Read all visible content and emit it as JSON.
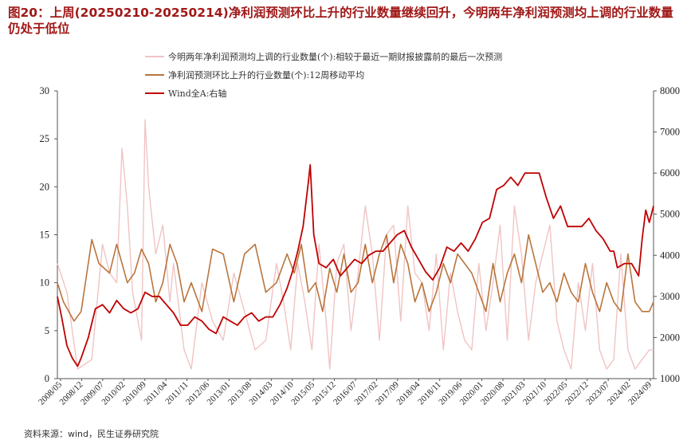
{
  "header": {
    "title": "图20：上周(20250210-20250214)净利润预测环比上升的行业数量继续回升，今明两年净利润预测均上调的行业数量仍处于低位"
  },
  "footer": {
    "source": "资料来源：wind，民生证券研究院"
  },
  "chart_data": {
    "type": "line",
    "title": "图20：上周(20250210-20250214)净利润预测环比上升的行业数量继续回升，今明两年净利润预测均上调的行业数量仍处于低位",
    "xlabel": "",
    "ylabel": "",
    "y2label": "",
    "x_ticks": [
      "2008/05",
      "2008/12",
      "2009/07",
      "2010/02",
      "2010/09",
      "2011/04",
      "2011/11",
      "2012/06",
      "2013/01",
      "2013/08",
      "2014/03",
      "2014/10",
      "2015/05",
      "2015/12",
      "2016/07",
      "2017/02",
      "2017/09",
      "2018/04",
      "2018/11",
      "2019/06",
      "2020/01",
      "2020/08",
      "2021/03",
      "2021/10",
      "2022/05",
      "2022/12",
      "2023/07",
      "2024/02",
      "2024/09"
    ],
    "xlim": [
      2008.33,
      2025.12
    ],
    "ylim": [
      0,
      30
    ],
    "y_ticks": [
      0,
      5,
      10,
      15,
      20,
      25,
      30
    ],
    "y2lim": [
      1000,
      8000
    ],
    "y2_ticks": [
      1000,
      2000,
      3000,
      4000,
      5000,
      6000,
      7000,
      8000
    ],
    "grid": false,
    "legend_position": "top-left",
    "series": [
      {
        "name": "今明两年净利润预测均上调的行业数量(个):相较于最近一期财报披露前的最后一次预测",
        "axis": "left",
        "color": "#f0c4c4",
        "x": [
          2008.33,
          2008.6,
          2008.9,
          2009.3,
          2009.6,
          2009.8,
          2010.0,
          2010.15,
          2010.3,
          2010.45,
          2010.7,
          2010.8,
          2010.9,
          2011.1,
          2011.3,
          2011.5,
          2011.6,
          2011.9,
          2012.1,
          2012.4,
          2012.7,
          2013.0,
          2013.3,
          2013.6,
          2013.9,
          2014.2,
          2014.5,
          2014.7,
          2014.9,
          2015.1,
          2015.3,
          2015.5,
          2015.7,
          2015.9,
          2016.0,
          2016.2,
          2016.4,
          2016.6,
          2016.8,
          2017.0,
          2017.2,
          2017.4,
          2017.6,
          2017.8,
          2018.0,
          2018.2,
          2018.4,
          2018.6,
          2018.8,
          2019.0,
          2019.2,
          2019.4,
          2019.6,
          2019.8,
          2020.0,
          2020.2,
          2020.4,
          2020.6,
          2020.8,
          2021.0,
          2021.2,
          2021.4,
          2021.6,
          2021.8,
          2022.0,
          2022.2,
          2022.4,
          2022.6,
          2022.8,
          2023.0,
          2023.2,
          2023.4,
          2023.6,
          2023.8,
          2024.0,
          2024.2,
          2024.4,
          2024.6,
          2024.8,
          2025.0,
          2025.12
        ],
        "values": [
          12,
          9,
          1,
          2,
          14,
          11,
          10,
          24,
          18,
          9,
          4,
          27,
          20,
          13,
          16,
          8,
          12,
          3,
          1,
          10,
          6,
          4,
          11,
          7,
          3,
          4,
          12,
          8,
          3,
          12,
          8,
          3,
          14,
          6,
          1,
          12,
          14,
          5,
          11,
          18,
          13,
          4,
          15,
          16,
          6,
          18,
          11,
          10,
          5,
          13,
          3,
          11,
          7,
          4,
          3,
          12,
          5,
          10,
          16,
          4,
          18,
          13,
          4,
          10,
          13,
          16,
          6,
          3,
          1,
          10,
          5,
          12,
          3,
          1,
          2,
          13,
          3,
          1,
          2,
          3,
          3
        ]
      },
      {
        "name": "净利润预测环比上升的行业数量(个):12周移动平均",
        "axis": "left",
        "color": "#b9753c",
        "x": [
          2008.33,
          2008.5,
          2008.8,
          2009.0,
          2009.3,
          2009.5,
          2009.8,
          2010.0,
          2010.3,
          2010.5,
          2010.7,
          2010.9,
          2011.1,
          2011.3,
          2011.5,
          2011.7,
          2011.9,
          2012.1,
          2012.4,
          2012.7,
          2013.0,
          2013.3,
          2013.6,
          2013.9,
          2014.2,
          2014.5,
          2014.8,
          2015.0,
          2015.2,
          2015.4,
          2015.6,
          2015.8,
          2016.0,
          2016.2,
          2016.4,
          2016.6,
          2016.8,
          2017.0,
          2017.2,
          2017.4,
          2017.6,
          2017.8,
          2018.0,
          2018.2,
          2018.4,
          2018.6,
          2018.8,
          2019.0,
          2019.2,
          2019.4,
          2019.6,
          2019.8,
          2020.0,
          2020.2,
          2020.4,
          2020.6,
          2020.8,
          2021.0,
          2021.2,
          2021.4,
          2021.6,
          2021.8,
          2022.0,
          2022.2,
          2022.4,
          2022.6,
          2022.8,
          2023.0,
          2023.2,
          2023.4,
          2023.6,
          2023.8,
          2024.0,
          2024.2,
          2024.4,
          2024.6,
          2024.8,
          2025.0,
          2025.12
        ],
        "values": [
          10,
          8,
          6,
          7,
          14.5,
          12,
          11,
          14,
          10,
          11,
          13.5,
          12,
          8,
          10,
          14,
          12,
          8,
          10,
          7,
          13.5,
          13,
          8,
          13,
          14,
          9,
          10,
          13,
          11,
          14,
          9,
          10,
          7,
          11.5,
          9,
          13,
          9,
          10,
          14,
          10,
          13,
          15,
          10,
          14,
          12,
          8,
          10,
          7,
          9,
          12,
          10,
          13,
          12,
          11,
          9,
          7,
          12,
          8,
          11,
          13,
          10,
          15,
          12,
          9,
          10,
          8,
          11,
          9,
          8,
          12,
          9,
          7,
          10,
          8,
          7,
          13,
          8,
          7,
          7,
          8
        ]
      },
      {
        "name": "Wind全A:右轴",
        "axis": "right",
        "color": "#c00000",
        "x": [
          2008.33,
          2008.45,
          2008.6,
          2008.75,
          2008.9,
          2009.0,
          2009.2,
          2009.4,
          2009.6,
          2009.8,
          2010.0,
          2010.2,
          2010.4,
          2010.6,
          2010.8,
          2011.0,
          2011.2,
          2011.4,
          2011.6,
          2011.8,
          2012.0,
          2012.2,
          2012.4,
          2012.6,
          2012.8,
          2013.0,
          2013.2,
          2013.4,
          2013.6,
          2013.8,
          2014.0,
          2014.2,
          2014.4,
          2014.6,
          2014.8,
          2014.95,
          2015.1,
          2015.25,
          2015.4,
          2015.45,
          2015.55,
          2015.7,
          2015.9,
          2016.1,
          2016.3,
          2016.5,
          2016.7,
          2016.9,
          2017.1,
          2017.3,
          2017.5,
          2017.7,
          2017.9,
          2018.1,
          2018.3,
          2018.5,
          2018.7,
          2018.9,
          2019.1,
          2019.3,
          2019.5,
          2019.7,
          2019.9,
          2020.1,
          2020.3,
          2020.5,
          2020.7,
          2020.9,
          2021.1,
          2021.3,
          2021.5,
          2021.7,
          2021.9,
          2022.1,
          2022.3,
          2022.5,
          2022.7,
          2022.9,
          2023.1,
          2023.3,
          2023.5,
          2023.7,
          2023.9,
          2024.0,
          2024.1,
          2024.3,
          2024.5,
          2024.7,
          2024.8,
          2024.9,
          2025.0,
          2025.12
        ],
        "values": [
          3000,
          2500,
          1800,
          1500,
          1300,
          1500,
          2000,
          2700,
          2800,
          2600,
          2900,
          2700,
          2600,
          2700,
          3100,
          3000,
          3000,
          2800,
          2600,
          2300,
          2300,
          2500,
          2400,
          2200,
          2100,
          2500,
          2400,
          2300,
          2500,
          2600,
          2400,
          2500,
          2500,
          2800,
          3200,
          3600,
          4100,
          4700,
          5800,
          6200,
          4500,
          3800,
          3700,
          3900,
          3500,
          3700,
          3900,
          3800,
          4000,
          4100,
          4100,
          4300,
          4500,
          4600,
          4200,
          3900,
          3600,
          3400,
          3700,
          4200,
          4100,
          4300,
          4100,
          4400,
          4800,
          4900,
          5600,
          5700,
          5900,
          5700,
          6000,
          6000,
          6000,
          5400,
          4900,
          5200,
          4700,
          4700,
          4700,
          4900,
          4600,
          4400,
          4100,
          4100,
          3700,
          3800,
          3800,
          3500,
          4400,
          5100,
          4800,
          5200
        ]
      }
    ]
  }
}
